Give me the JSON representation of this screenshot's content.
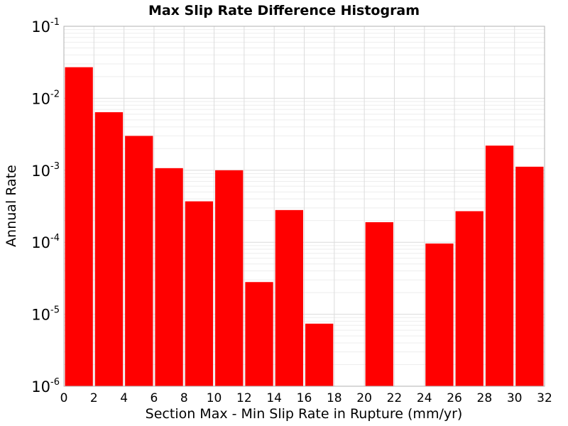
{
  "chart_data": {
    "type": "bar",
    "title": "Max Slip Rate Difference Histogram",
    "xlabel": "Section Max - Min Slip Rate in Rupture (mm/yr)",
    "ylabel": "Annual Rate",
    "xlim": [
      0,
      32
    ],
    "ylim": [
      1e-06,
      0.1
    ],
    "yscale": "log",
    "grid": true,
    "bar_color": "#ff0000",
    "xticks": [
      "0",
      "2",
      "4",
      "6",
      "8",
      "10",
      "12",
      "14",
      "16",
      "18",
      "20",
      "22",
      "24",
      "26",
      "28",
      "30",
      "32"
    ],
    "yticks": [
      {
        "base": "10",
        "exp": "-6",
        "value": 1e-06
      },
      {
        "base": "10",
        "exp": "-5",
        "value": 1e-05
      },
      {
        "base": "10",
        "exp": "-4",
        "value": 0.0001
      },
      {
        "base": "10",
        "exp": "-3",
        "value": 0.001
      },
      {
        "base": "10",
        "exp": "-2",
        "value": 0.01
      },
      {
        "base": "10",
        "exp": "-1",
        "value": 0.1
      }
    ],
    "bin_width": 2,
    "bins": [
      {
        "x_start": 0,
        "value": 0.027
      },
      {
        "x_start": 2,
        "value": 0.0064
      },
      {
        "x_start": 4,
        "value": 0.003
      },
      {
        "x_start": 6,
        "value": 0.00107
      },
      {
        "x_start": 8,
        "value": 0.00037
      },
      {
        "x_start": 10,
        "value": 0.001
      },
      {
        "x_start": 12,
        "value": 2.8e-05
      },
      {
        "x_start": 14,
        "value": 0.00028
      },
      {
        "x_start": 16,
        "value": 7.4e-06
      },
      {
        "x_start": 20,
        "value": 0.00019
      },
      {
        "x_start": 24,
        "value": 9.6e-05
      },
      {
        "x_start": 26,
        "value": 0.00027
      },
      {
        "x_start": 28,
        "value": 0.0022
      },
      {
        "x_start": 30,
        "value": 0.00112
      }
    ]
  }
}
